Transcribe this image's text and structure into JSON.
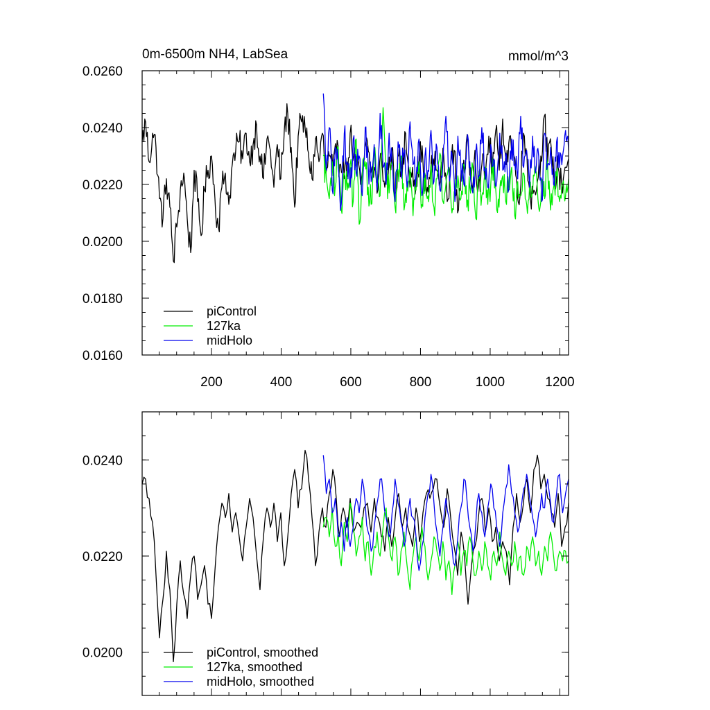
{
  "chart_data": [
    {
      "type": "line",
      "title_left": "0m-6500m NH4, LabSea",
      "title_right": "mmol/m^3",
      "xlabel": "",
      "ylabel": "",
      "xlim": [
        1,
        1225
      ],
      "ylim": [
        0.016,
        0.026
      ],
      "x_ticks": [
        200,
        400,
        600,
        800,
        1000,
        1200
      ],
      "x_tick_labels": [
        "200",
        "400",
        "600",
        "800",
        "1000",
        "1200"
      ],
      "y_ticks": [
        0.016,
        0.018,
        0.02,
        0.022,
        0.024,
        0.026
      ],
      "y_tick_labels": [
        "0.0160",
        "0.0180",
        "0.0200",
        "0.0220",
        "0.0240",
        "0.0260"
      ],
      "grid": false,
      "legend_position": "bottom-left",
      "series": [
        {
          "name": "piControl",
          "label": "piControl",
          "color": "#000000",
          "x_start": 1,
          "x_end": 1225,
          "values": [
            0.0235,
            0.0242,
            0.0228,
            0.0238,
            0.0233,
            0.0215,
            0.0208,
            0.0222,
            0.0212,
            0.0193,
            0.0205,
            0.0218,
            0.0224,
            0.0208,
            0.0196,
            0.0225,
            0.0214,
            0.0202,
            0.0218,
            0.0225,
            0.023,
            0.0215,
            0.0205,
            0.0219,
            0.0224,
            0.0213,
            0.0227,
            0.0232,
            0.0235,
            0.0229,
            0.0238,
            0.0228,
            0.0234,
            0.0241,
            0.023,
            0.0222,
            0.0236,
            0.0232,
            0.0219,
            0.0234,
            0.0222,
            0.0239,
            0.0245,
            0.0233,
            0.0212,
            0.0237,
            0.0242,
            0.024,
            0.0231,
            0.0222,
            0.0236,
            0.0228,
            0.0238,
            0.0224,
            0.023,
            0.0225,
            0.0231,
            0.0227,
            0.0229,
            0.0223,
            0.0238,
            0.023,
            0.0226,
            0.022,
            0.0228,
            0.0235,
            0.0224,
            0.0226,
            0.0218,
            0.0231,
            0.0219,
            0.0224,
            0.0232,
            0.0217,
            0.023,
            0.0223,
            0.0238,
            0.0224,
            0.0226,
            0.0219,
            0.0231,
            0.0228,
            0.0216,
            0.0222,
            0.0229,
            0.0225,
            0.0221,
            0.023,
            0.0214,
            0.0227,
            0.0232,
            0.021,
            0.0225,
            0.0224,
            0.0235,
            0.022,
            0.0232,
            0.0219,
            0.0227,
            0.0223,
            0.0237,
            0.0225,
            0.0239,
            0.0225,
            0.0243,
            0.0227,
            0.0237,
            0.0231,
            0.0222,
            0.0216,
            0.0238,
            0.023,
            0.0215,
            0.0218,
            0.0221,
            0.023,
            0.0244,
            0.0228,
            0.0233,
            0.0221,
            0.0226,
            0.022,
            0.0226,
            0.0229
          ]
        },
        {
          "name": "127ka",
          "label": "127ka",
          "color": "#00ee00",
          "x_start": 521,
          "x_end": 1225,
          "values": [
            0.023,
            0.0222,
            0.0215,
            0.0228,
            0.0219,
            0.0233,
            0.0211,
            0.0224,
            0.0218,
            0.0227,
            0.0214,
            0.0236,
            0.0206,
            0.0223,
            0.0228,
            0.0219,
            0.0213,
            0.0232,
            0.0221,
            0.0216,
            0.0247,
            0.0222,
            0.0217,
            0.0228,
            0.0212,
            0.0225,
            0.023,
            0.0211,
            0.0221,
            0.0226,
            0.0209,
            0.0218,
            0.0228,
            0.0213,
            0.0224,
            0.0216,
            0.0227,
            0.0212,
            0.0222,
            0.0231,
            0.0214,
            0.022,
            0.0226,
            0.021,
            0.0218,
            0.0223,
            0.0215,
            0.0227,
            0.0212,
            0.0219,
            0.0226,
            0.0208,
            0.0222,
            0.0216,
            0.0224,
            0.0213,
            0.022,
            0.0228,
            0.0211,
            0.0218,
            0.0223,
            0.0214,
            0.0219,
            0.0226,
            0.0209,
            0.0221,
            0.0216,
            0.0224,
            0.0213,
            0.022,
            0.0217,
            0.0225,
            0.0212,
            0.0222,
            0.0215,
            0.0227,
            0.0211,
            0.0219,
            0.0223,
            0.0214,
            0.022,
            0.0216,
            0.0222
          ]
        },
        {
          "name": "midHolo",
          "label": "midHolo",
          "color": "#0000ee",
          "x_start": 521,
          "x_end": 1225,
          "values": [
            0.0252,
            0.0225,
            0.024,
            0.0218,
            0.0233,
            0.0226,
            0.0213,
            0.0238,
            0.0228,
            0.0219,
            0.0236,
            0.0224,
            0.023,
            0.0216,
            0.024,
            0.0227,
            0.0221,
            0.0234,
            0.0218,
            0.0245,
            0.0226,
            0.022,
            0.0238,
            0.0229,
            0.0214,
            0.0235,
            0.0224,
            0.0231,
            0.0219,
            0.0242,
            0.0227,
            0.0222,
            0.0236,
            0.0216,
            0.023,
            0.0225,
            0.0239,
            0.0221,
            0.0233,
            0.0218,
            0.0228,
            0.0244,
            0.0224,
            0.0231,
            0.0214,
            0.0237,
            0.0226,
            0.022,
            0.0235,
            0.0228,
            0.0217,
            0.0232,
            0.0223,
            0.024,
            0.0226,
            0.0219,
            0.0234,
            0.0229,
            0.0221,
            0.0238,
            0.0225,
            0.0231,
            0.0218,
            0.0236,
            0.0227,
            0.0222,
            0.0244,
            0.0226,
            0.0232,
            0.0219,
            0.0237,
            0.0224,
            0.023,
            0.0214,
            0.0238,
            0.0227,
            0.0233,
            0.022,
            0.0235,
            0.0226,
            0.023,
            0.0239,
            0.0232
          ]
        }
      ]
    },
    {
      "type": "line",
      "title_left": "",
      "title_right": "",
      "xlabel": "",
      "ylabel": "",
      "xlim": [
        1,
        1225
      ],
      "ylim": [
        0.0191,
        0.025
      ],
      "x_ticks": [
        200,
        400,
        600,
        800,
        1000,
        1200
      ],
      "y_ticks": [
        0.02,
        0.022,
        0.024
      ],
      "y_tick_labels": [
        "0.0200",
        "0.0220",
        "0.0240"
      ],
      "grid": false,
      "legend_position": "bottom-left",
      "series": [
        {
          "name": "piControl, smoothed",
          "label": "piControl, smoothed",
          "color": "#000000",
          "x_start": 1,
          "x_end": 1225,
          "values": [
            0.0235,
            0.0236,
            0.0232,
            0.0227,
            0.0216,
            0.0203,
            0.0211,
            0.0221,
            0.0213,
            0.0198,
            0.021,
            0.0219,
            0.0212,
            0.0207,
            0.0216,
            0.022,
            0.0211,
            0.0214,
            0.0218,
            0.021,
            0.0207,
            0.0217,
            0.0226,
            0.0231,
            0.0228,
            0.0233,
            0.0225,
            0.0229,
            0.0224,
            0.0219,
            0.0226,
            0.0232,
            0.0228,
            0.022,
            0.0213,
            0.0224,
            0.023,
            0.0226,
            0.0231,
            0.0223,
            0.0229,
            0.0218,
            0.0224,
            0.0233,
            0.0238,
            0.023,
            0.0234,
            0.0242,
            0.0236,
            0.0228,
            0.0218,
            0.0225,
            0.023,
            0.0226,
            0.0233,
            0.0238,
            0.0232,
            0.0224,
            0.023,
            0.0226,
            0.0232,
            0.0225,
            0.0227,
            0.0226,
            0.023,
            0.0231,
            0.0225,
            0.0232,
            0.0228,
            0.0224,
            0.0221,
            0.0228,
            0.0222,
            0.0228,
            0.0233,
            0.0226,
            0.023,
            0.0225,
            0.0222,
            0.023,
            0.0223,
            0.0229,
            0.0233,
            0.0232,
            0.0234,
            0.0236,
            0.023,
            0.0226,
            0.0234,
            0.0228,
            0.0222,
            0.0216,
            0.0225,
            0.022,
            0.021,
            0.0218,
            0.0222,
            0.0228,
            0.0232,
            0.0225,
            0.023,
            0.0223,
            0.0226,
            0.0219,
            0.0223,
            0.0221,
            0.0214,
            0.0226,
            0.0233,
            0.0227,
            0.0231,
            0.0236,
            0.0229,
            0.0238,
            0.0241,
            0.0234,
            0.0237,
            0.0232,
            0.0229,
            0.0226,
            0.0233,
            0.0222,
            0.0226,
            0.0231
          ]
        },
        {
          "name": "127ka, smoothed",
          "label": "127ka, smoothed",
          "color": "#00ee00",
          "x_start": 521,
          "x_end": 1225,
          "values": [
            0.0226,
            0.0228,
            0.0224,
            0.023,
            0.0222,
            0.0225,
            0.0218,
            0.0227,
            0.0223,
            0.0231,
            0.0226,
            0.022,
            0.0224,
            0.0228,
            0.0219,
            0.0223,
            0.0216,
            0.0222,
            0.0225,
            0.022,
            0.0226,
            0.023,
            0.0223,
            0.0219,
            0.0224,
            0.0216,
            0.0221,
            0.0225,
            0.0218,
            0.0213,
            0.022,
            0.0224,
            0.0219,
            0.0226,
            0.0222,
            0.0215,
            0.0219,
            0.0224,
            0.0221,
            0.0217,
            0.0223,
            0.0215,
            0.0219,
            0.0212,
            0.0218,
            0.0223,
            0.0216,
            0.0221,
            0.0218,
            0.0224,
            0.0219,
            0.0216,
            0.0221,
            0.0217,
            0.0223,
            0.0218,
            0.0215,
            0.0221,
            0.0218,
            0.0225,
            0.0219,
            0.0216,
            0.0221,
            0.0218,
            0.0223,
            0.0217,
            0.022,
            0.0216,
            0.0222,
            0.0219,
            0.0224,
            0.0218,
            0.0221,
            0.0216,
            0.0222,
            0.0219,
            0.0225,
            0.022,
            0.0217,
            0.0221,
            0.0219,
            0.0221,
            0.0219
          ]
        },
        {
          "name": "midHolo, smoothed",
          "label": "midHolo, smoothed",
          "color": "#0000ee",
          "x_start": 521,
          "x_end": 1225,
          "values": [
            0.0241,
            0.0233,
            0.0236,
            0.0229,
            0.0232,
            0.0224,
            0.0227,
            0.0221,
            0.0228,
            0.0222,
            0.0226,
            0.0232,
            0.0229,
            0.0236,
            0.0231,
            0.0225,
            0.0221,
            0.0226,
            0.0231,
            0.0236,
            0.0233,
            0.0228,
            0.0224,
            0.0229,
            0.0236,
            0.0231,
            0.0227,
            0.0222,
            0.0227,
            0.0232,
            0.0228,
            0.0224,
            0.0217,
            0.0222,
            0.0228,
            0.0233,
            0.0237,
            0.0231,
            0.0225,
            0.022,
            0.0226,
            0.0232,
            0.0228,
            0.0222,
            0.0218,
            0.0224,
            0.023,
            0.0236,
            0.0232,
            0.0226,
            0.0221,
            0.0227,
            0.0233,
            0.0229,
            0.0224,
            0.023,
            0.0235,
            0.023,
            0.0226,
            0.0222,
            0.0229,
            0.0234,
            0.0239,
            0.0233,
            0.0229,
            0.0225,
            0.0229,
            0.0234,
            0.0237,
            0.0232,
            0.0228,
            0.0224,
            0.0229,
            0.0233,
            0.023,
            0.0236,
            0.0231,
            0.0227,
            0.0233,
            0.0237,
            0.0229,
            0.0233,
            0.0236
          ]
        }
      ]
    }
  ]
}
